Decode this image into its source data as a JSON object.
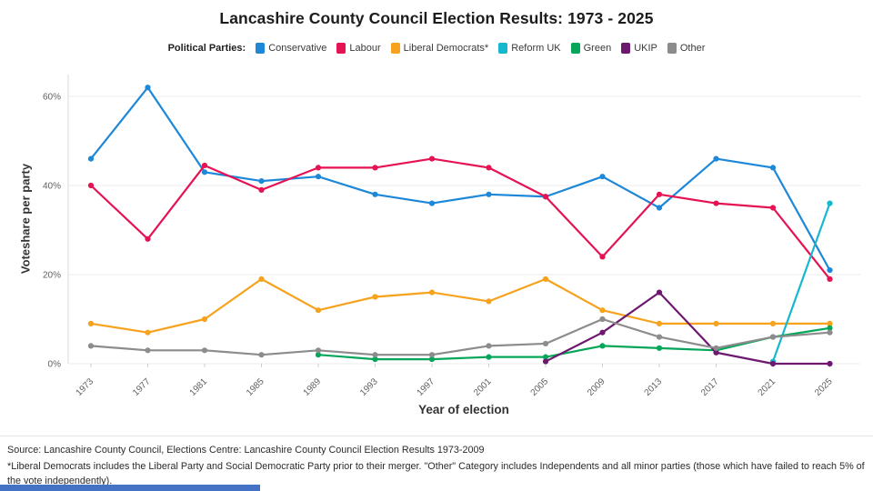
{
  "page": {
    "title": "Lancashire County Council Election Results: 1973 - 2025",
    "legend_label": "Political Parties:",
    "footer": {
      "source": "Source: Lancashire County Council, Elections Centre: Lancashire County Council Election Results 1973-2009",
      "note": "*Liberal Democrats includes the Liberal Party and Social Democratic Party prior to their merger. \"Other\" Category includes Independents and all minor parties (those which have failed to reach 5% of the vote independently)."
    },
    "bottom_bar_color": "#4472c4"
  },
  "chart_data": {
    "type": "line",
    "title": "Lancashire County Council Election Results: 1973 - 2025",
    "xlabel": "Year of election",
    "ylabel": "Voteshare per party",
    "ylim": [
      0,
      65
    ],
    "yticks": [
      "0%",
      "20%",
      "40%",
      "60%"
    ],
    "ytick_values": [
      0,
      20,
      40,
      60
    ],
    "grid": "horizontal",
    "legend_position": "top",
    "categories": [
      "1973",
      "1977",
      "1981",
      "1985",
      "1989",
      "1993",
      "1997",
      "2001",
      "2005",
      "2009",
      "2013",
      "2017",
      "2021",
      "2025"
    ],
    "series": [
      {
        "name": "Conservative",
        "color": "#1d87d8",
        "values": [
          46,
          62,
          43,
          41,
          42,
          38,
          36,
          38,
          37.5,
          42,
          35,
          46,
          44,
          21
        ]
      },
      {
        "name": "Labour",
        "color": "#e51353",
        "values": [
          40,
          28,
          44.5,
          39,
          44,
          44,
          46,
          44,
          37.5,
          24,
          38,
          36,
          35,
          19
        ]
      },
      {
        "name": "Liberal Democrats*",
        "color": "#f6a21d",
        "values": [
          9,
          7,
          10,
          19,
          12,
          15,
          16,
          14,
          19,
          12,
          9,
          9,
          9,
          9
        ]
      },
      {
        "name": "Reform UK",
        "color": "#16b8cd",
        "values": [
          null,
          null,
          null,
          null,
          null,
          null,
          null,
          null,
          null,
          null,
          null,
          null,
          0.5,
          36
        ]
      },
      {
        "name": "Green",
        "color": "#06a65a",
        "values": [
          null,
          null,
          null,
          null,
          2,
          1,
          1,
          1.5,
          1.5,
          4,
          3.5,
          3,
          6,
          8
        ]
      },
      {
        "name": "UKIP",
        "color": "#6d1970",
        "values": [
          null,
          null,
          null,
          null,
          null,
          null,
          null,
          null,
          0.5,
          7,
          16,
          2.5,
          0,
          0
        ]
      },
      {
        "name": "Other",
        "color": "#8c8c8c",
        "values": [
          4,
          3,
          3,
          2,
          3,
          2,
          2,
          4,
          4.5,
          10,
          6,
          3.5,
          6,
          7
        ]
      }
    ]
  }
}
